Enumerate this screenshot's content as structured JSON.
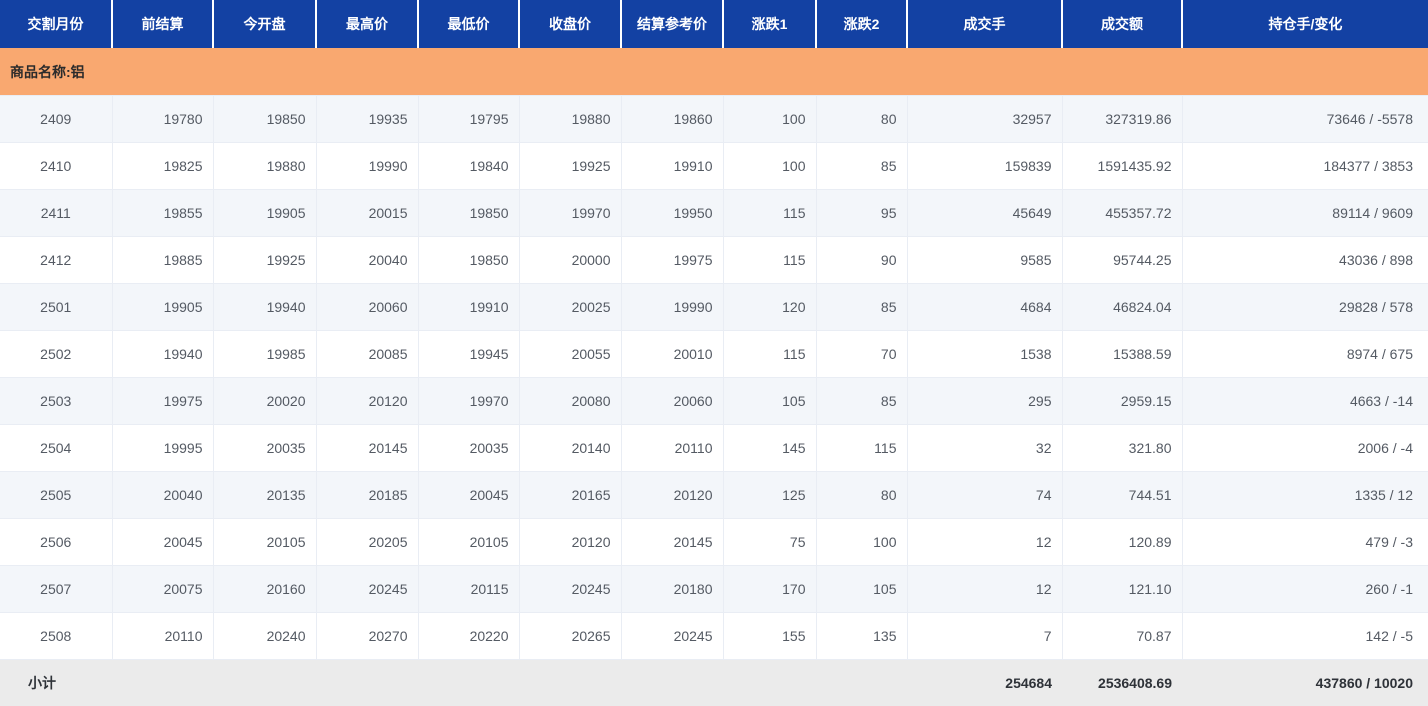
{
  "colors": {
    "header_bg": "#1341a3",
    "header_text": "#ffffff",
    "group_row_bg": "#f9a870",
    "row_alt_bg": "#f3f6fa",
    "subtotal_bg": "#ebebeb",
    "cell_text": "#545a63"
  },
  "table": {
    "columns": [
      {
        "id": "month",
        "label": "交割月份"
      },
      {
        "id": "prev-settle",
        "label": "前结算"
      },
      {
        "id": "open",
        "label": "今开盘"
      },
      {
        "id": "high",
        "label": "最高价"
      },
      {
        "id": "low",
        "label": "最低价"
      },
      {
        "id": "close",
        "label": "收盘价"
      },
      {
        "id": "settle-ref",
        "label": "结算参考价"
      },
      {
        "id": "change1",
        "label": "涨跌1"
      },
      {
        "id": "change2",
        "label": "涨跌2"
      },
      {
        "id": "volume",
        "label": "成交手"
      },
      {
        "id": "turnover",
        "label": "成交额"
      },
      {
        "id": "oi-change",
        "label": "持仓手/变化"
      }
    ],
    "group_label": "商品名称:铝",
    "rows": [
      [
        "2409",
        "19780",
        "19850",
        "19935",
        "19795",
        "19880",
        "19860",
        "100",
        "80",
        "32957",
        "327319.86",
        "73646 / -5578"
      ],
      [
        "2410",
        "19825",
        "19880",
        "19990",
        "19840",
        "19925",
        "19910",
        "100",
        "85",
        "159839",
        "1591435.92",
        "184377 / 3853"
      ],
      [
        "2411",
        "19855",
        "19905",
        "20015",
        "19850",
        "19970",
        "19950",
        "115",
        "95",
        "45649",
        "455357.72",
        "89114 / 9609"
      ],
      [
        "2412",
        "19885",
        "19925",
        "20040",
        "19850",
        "20000",
        "19975",
        "115",
        "90",
        "9585",
        "95744.25",
        "43036 / 898"
      ],
      [
        "2501",
        "19905",
        "19940",
        "20060",
        "19910",
        "20025",
        "19990",
        "120",
        "85",
        "4684",
        "46824.04",
        "29828 / 578"
      ],
      [
        "2502",
        "19940",
        "19985",
        "20085",
        "19945",
        "20055",
        "20010",
        "115",
        "70",
        "1538",
        "15388.59",
        "8974 / 675"
      ],
      [
        "2503",
        "19975",
        "20020",
        "20120",
        "19970",
        "20080",
        "20060",
        "105",
        "85",
        "295",
        "2959.15",
        "4663 / -14"
      ],
      [
        "2504",
        "19995",
        "20035",
        "20145",
        "20035",
        "20140",
        "20110",
        "145",
        "115",
        "32",
        "321.80",
        "2006 / -4"
      ],
      [
        "2505",
        "20040",
        "20135",
        "20185",
        "20045",
        "20165",
        "20120",
        "125",
        "80",
        "74",
        "744.51",
        "1335 / 12"
      ],
      [
        "2506",
        "20045",
        "20105",
        "20205",
        "20105",
        "20120",
        "20145",
        "75",
        "100",
        "12",
        "120.89",
        "479 / -3"
      ],
      [
        "2507",
        "20075",
        "20160",
        "20245",
        "20115",
        "20245",
        "20180",
        "170",
        "105",
        "12",
        "121.10",
        "260 / -1"
      ],
      [
        "2508",
        "20110",
        "20240",
        "20270",
        "20220",
        "20265",
        "20245",
        "155",
        "135",
        "7",
        "70.87",
        "142 / -5"
      ]
    ],
    "subtotal": {
      "label": "小计",
      "volume": "254684",
      "turnover": "2536408.69",
      "oi_change": "437860 / 10020"
    }
  }
}
